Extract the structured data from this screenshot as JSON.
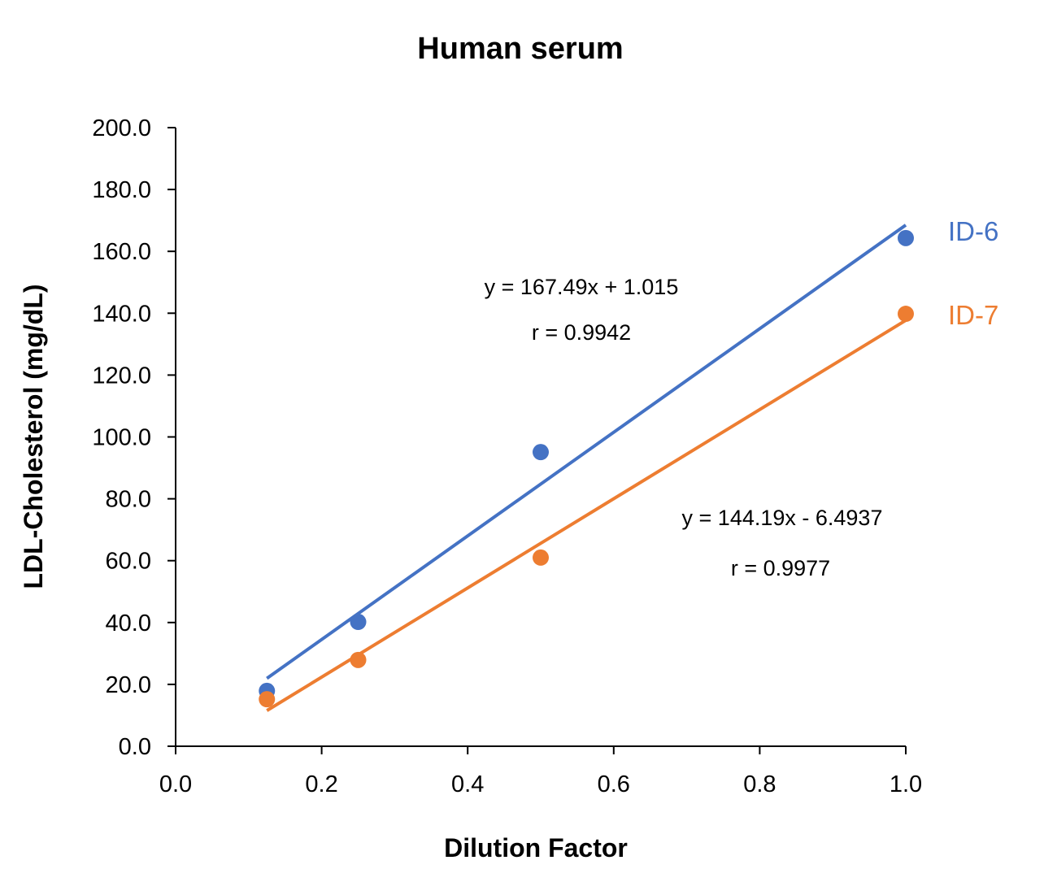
{
  "chart_data": {
    "type": "scatter",
    "title": "Human serum",
    "xlabel": "Dilution Factor",
    "ylabel": "LDL-Cholesterol (mg/dL)",
    "xlim": [
      0,
      1.0
    ],
    "ylim": [
      0,
      200
    ],
    "xticks": [
      "0.0",
      "0.2",
      "0.4",
      "0.6",
      "0.8",
      "1.0"
    ],
    "yticks": [
      "0.0",
      "20.0",
      "40.0",
      "60.0",
      "80.0",
      "100.0",
      "120.0",
      "140.0",
      "160.0",
      "180.0",
      "200.0"
    ],
    "grid": false,
    "legend": "right, inline labels",
    "series": [
      {
        "name": "ID-6",
        "color": "#4472C4",
        "x": [
          0.125,
          0.25,
          0.5,
          1.0
        ],
        "y": [
          17.9,
          40.2,
          95.1,
          164.3
        ],
        "trendline": {
          "slope": 167.49,
          "intercept": 1.015
        },
        "equation": "y = 167.49x + 1.015",
        "r": "r = 0.9942"
      },
      {
        "name": "ID-7",
        "color": "#ED7D31",
        "x": [
          0.125,
          0.25,
          0.5,
          1.0
        ],
        "y": [
          15.2,
          27.9,
          61.0,
          139.8
        ],
        "trendline": {
          "slope": 144.19,
          "intercept": -6.4937
        },
        "equation": "y = 144.19x - 6.4937",
        "r": "r = 0.9977"
      }
    ]
  }
}
